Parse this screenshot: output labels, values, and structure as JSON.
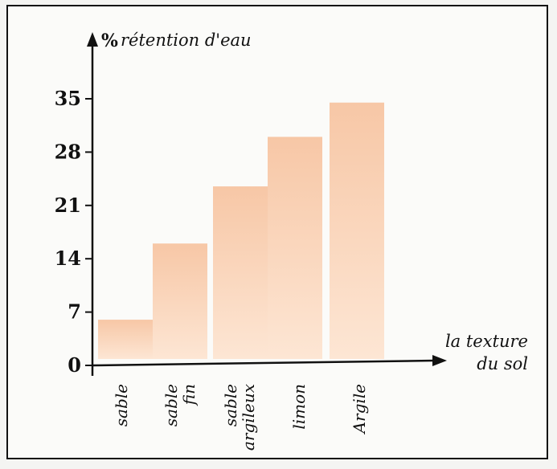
{
  "chart_data": {
    "type": "bar",
    "categories": [
      [
        "sable"
      ],
      [
        "sable",
        "fin"
      ],
      [
        "sable",
        "argileux"
      ],
      [
        "limon"
      ],
      [
        "Argile"
      ]
    ],
    "values": [
      6,
      16,
      23.5,
      30,
      34.5
    ],
    "yticks": [
      0,
      7,
      14,
      21,
      28,
      35
    ],
    "ylim": [
      0,
      35
    ],
    "ylabel_symbol": "%",
    "ylabel": "rétention d'eau",
    "xlabel": [
      "la texture",
      "du sol"
    ],
    "grid": false,
    "colors": {
      "bar_light": "#fde6d4",
      "bar_dark": "#f7c7a6",
      "axis": "#111111"
    }
  }
}
